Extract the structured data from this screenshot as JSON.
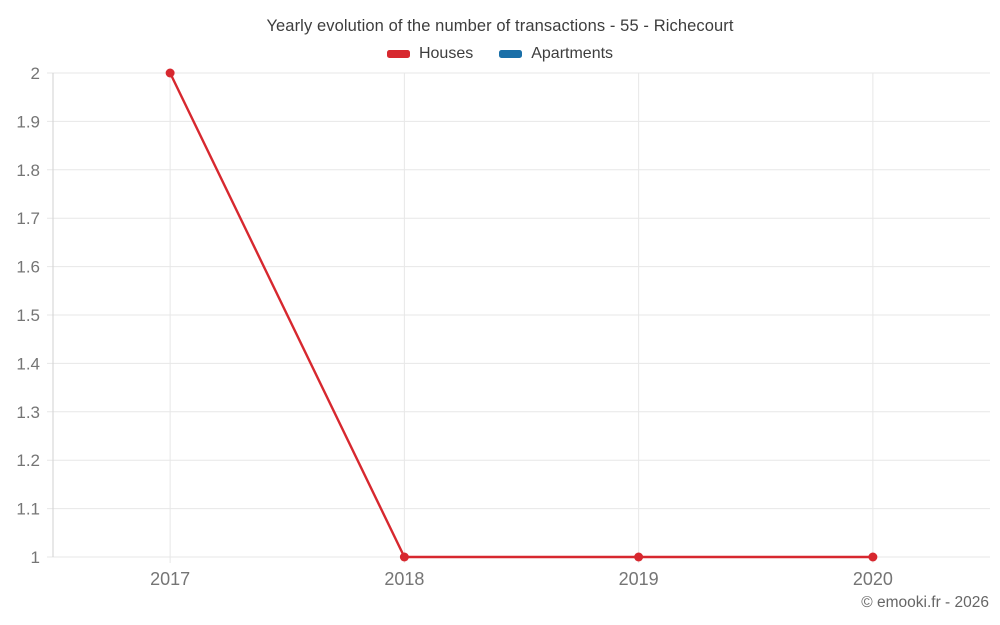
{
  "chart_data": {
    "type": "line",
    "title": "Yearly evolution of the number of transactions - 55 - Richecourt",
    "categories": [
      "2017",
      "2018",
      "2019",
      "2020"
    ],
    "series": [
      {
        "name": "Houses",
        "color": "#d7282f",
        "values": [
          2,
          1,
          1,
          1
        ]
      },
      {
        "name": "Apartments",
        "color": "#1a6fa8",
        "values": []
      }
    ],
    "ylim": [
      1,
      2
    ],
    "ytick_step": 0.1,
    "ytick_labels": [
      "1",
      "1.1",
      "1.2",
      "1.3",
      "1.4",
      "1.5",
      "1.6",
      "1.7",
      "1.8",
      "1.9",
      "2"
    ],
    "xlabel": "",
    "ylabel": "",
    "grid": true,
    "legend_position": "top"
  },
  "footer": {
    "credit": "© emooki.fr - 2026"
  },
  "colors": {
    "series_houses": "#d7282f",
    "series_apartments": "#1a6fa8",
    "grid_line": "#e7e7e7",
    "axis_line": "#d2d2d2",
    "tick_label": "#757575",
    "title_text": "#3d3d3d",
    "footer_text": "#666666",
    "background": "#ffffff"
  }
}
